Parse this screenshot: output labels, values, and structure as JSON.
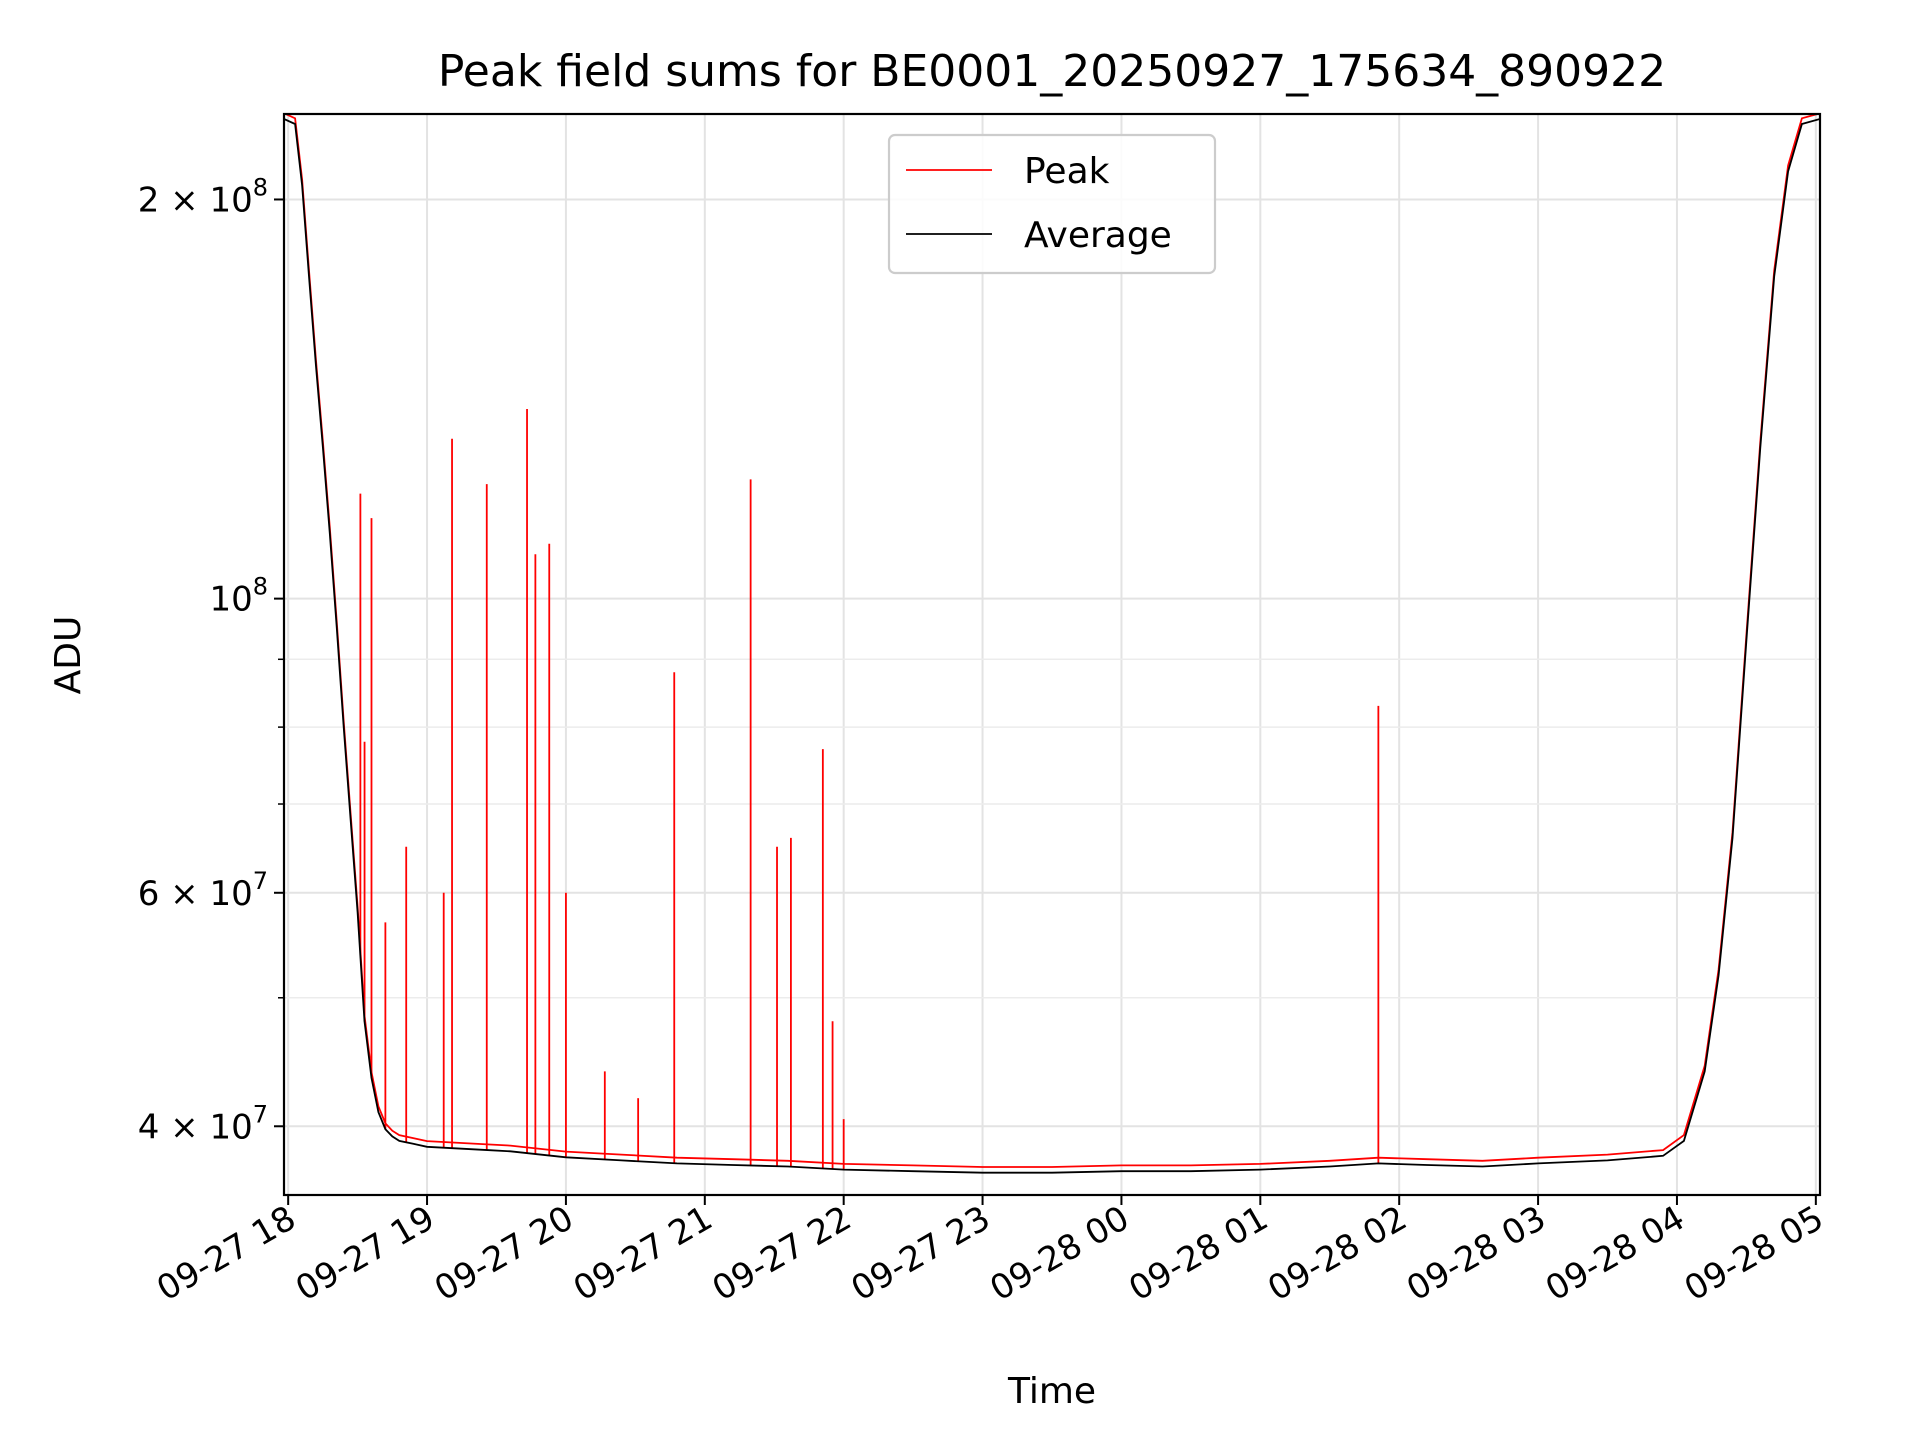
{
  "chart_data": {
    "type": "line",
    "title": "Peak field sums for BE0001_20250927_175634_890922",
    "xlabel": "Time",
    "ylabel": "ADU",
    "yscale": "log",
    "ylim": [
      35500000,
      232000000
    ],
    "xlim_hours": [
      -0.03,
      11.03
    ],
    "grid": true,
    "legend_position": "top-center",
    "x_ticks": [
      {
        "label": "09-27 18",
        "value": 0
      },
      {
        "label": "09-27 19",
        "value": 1
      },
      {
        "label": "09-27 20",
        "value": 2
      },
      {
        "label": "09-27 21",
        "value": 3
      },
      {
        "label": "09-27 22",
        "value": 4
      },
      {
        "label": "09-27 23",
        "value": 5
      },
      {
        "label": "09-28 00",
        "value": 6
      },
      {
        "label": "09-28 01",
        "value": 7
      },
      {
        "label": "09-28 02",
        "value": 8
      },
      {
        "label": "09-28 03",
        "value": 9
      },
      {
        "label": "09-28 04",
        "value": 10
      },
      {
        "label": "09-28 05",
        "value": 11
      }
    ],
    "y_ticks": [
      {
        "label": "4 × 10",
        "exp": "7",
        "value": 40000000
      },
      {
        "label": "6 × 10",
        "exp": "7",
        "value": 60000000
      },
      {
        "label": "10",
        "exp": "8",
        "value": 100000000
      },
      {
        "label": "2 × 10",
        "exp": "8",
        "value": 200000000
      }
    ],
    "y_minor_ticks": [
      50000000,
      70000000,
      80000000,
      90000000
    ],
    "series": [
      {
        "name": "Average",
        "color": "#000000",
        "x": [
          -0.03,
          0.05,
          0.1,
          0.15,
          0.2,
          0.25,
          0.3,
          0.35,
          0.4,
          0.45,
          0.5,
          0.55,
          0.6,
          0.65,
          0.7,
          0.75,
          0.8,
          0.9,
          1.0,
          1.2,
          1.4,
          1.6,
          1.8,
          2.0,
          2.4,
          2.8,
          3.2,
          3.6,
          4.0,
          4.5,
          5.0,
          5.5,
          6.0,
          6.5,
          7.0,
          7.5,
          7.85,
          8.2,
          8.6,
          9.0,
          9.5,
          9.9,
          10.05,
          10.2,
          10.3,
          10.4,
          10.5,
          10.6,
          10.7,
          10.8,
          10.9,
          11.03
        ],
        "y": [
          230000000,
          228000000,
          205000000,
          175000000,
          150000000,
          130000000,
          112000000,
          95000000,
          80000000,
          68000000,
          58000000,
          48000000,
          43500000,
          41000000,
          39800000,
          39300000,
          39000000,
          38800000,
          38600000,
          38500000,
          38400000,
          38300000,
          38100000,
          37900000,
          37700000,
          37500000,
          37400000,
          37300000,
          37100000,
          37000000,
          36900000,
          36900000,
          37000000,
          37000000,
          37100000,
          37300000,
          37500000,
          37400000,
          37300000,
          37500000,
          37700000,
          38000000,
          39000000,
          44000000,
          52000000,
          66000000,
          93000000,
          130000000,
          175000000,
          210000000,
          228000000,
          230000000
        ]
      },
      {
        "name": "Peak",
        "color": "#ff0000",
        "spikes": [
          {
            "x": 0.52,
            "y": 120000000
          },
          {
            "x": 0.55,
            "y": 78000000
          },
          {
            "x": 0.6,
            "y": 115000000
          },
          {
            "x": 0.7,
            "y": 57000000
          },
          {
            "x": 0.85,
            "y": 65000000
          },
          {
            "x": 1.12,
            "y": 60000000
          },
          {
            "x": 1.18,
            "y": 132000000
          },
          {
            "x": 1.43,
            "y": 122000000
          },
          {
            "x": 1.72,
            "y": 139000000
          },
          {
            "x": 1.78,
            "y": 108000000
          },
          {
            "x": 1.88,
            "y": 110000000
          },
          {
            "x": 2.0,
            "y": 60000000
          },
          {
            "x": 2.28,
            "y": 44000000
          },
          {
            "x": 2.52,
            "y": 42000000
          },
          {
            "x": 2.78,
            "y": 88000000
          },
          {
            "x": 3.33,
            "y": 123000000
          },
          {
            "x": 3.52,
            "y": 65000000
          },
          {
            "x": 3.62,
            "y": 66000000
          },
          {
            "x": 3.85,
            "y": 77000000
          },
          {
            "x": 3.92,
            "y": 48000000
          },
          {
            "x": 4.0,
            "y": 40500000
          },
          {
            "x": 7.85,
            "y": 83000000
          }
        ]
      }
    ]
  }
}
